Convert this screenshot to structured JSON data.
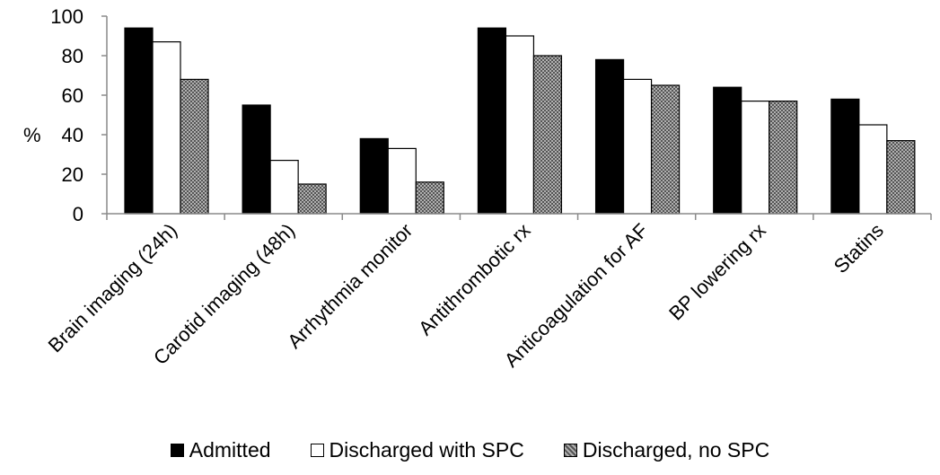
{
  "chart_data": {
    "type": "bar",
    "ylabel": "%",
    "ylim": [
      0,
      100
    ],
    "yticks": [
      0,
      20,
      40,
      60,
      80,
      100
    ],
    "grid": false,
    "legend_position": "bottom",
    "categories": [
      "Brain imaging (24h)",
      "Carotid imaging (48h)",
      "Arrhythmia monitor",
      "Antithrombotic rx",
      "Anticoagulation for AF",
      "BP lowering rx",
      "Statins"
    ],
    "series": [
      {
        "name": "Admitted",
        "color": "#000000",
        "pattern": "solid",
        "values": [
          94,
          55,
          38,
          94,
          78,
          64,
          58
        ]
      },
      {
        "name": "Discharged with SPC",
        "color": "#ffffff",
        "pattern": "solid",
        "values": [
          87,
          27,
          33,
          90,
          68,
          57,
          45
        ]
      },
      {
        "name": "Discharged, no SPC",
        "color": "#8c8c8c",
        "pattern": "dotted",
        "values": [
          68,
          15,
          16,
          80,
          65,
          57,
          37
        ]
      }
    ]
  }
}
